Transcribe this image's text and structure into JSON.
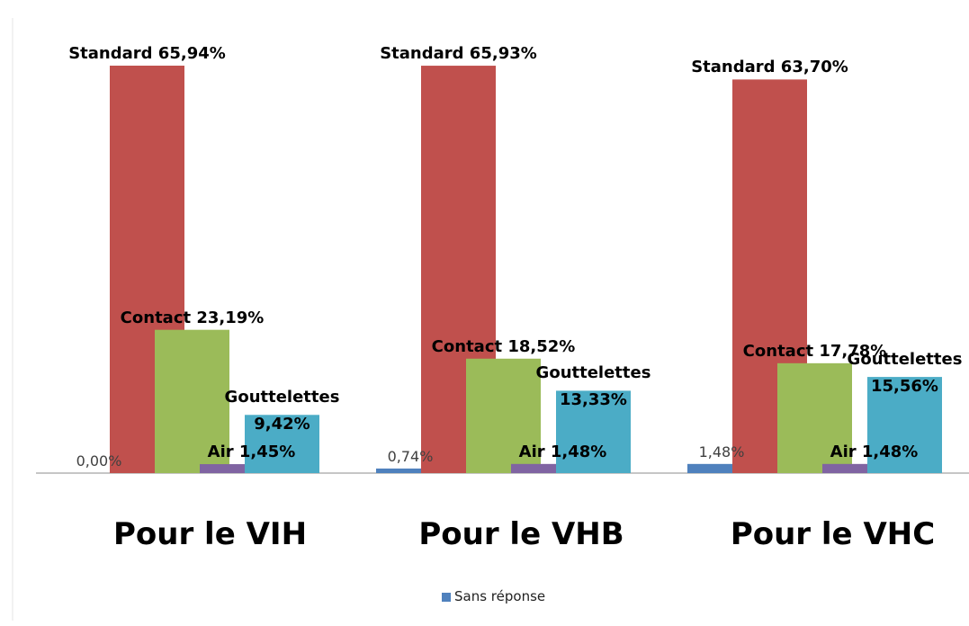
{
  "chart_data": {
    "type": "bar",
    "categories": [
      "Pour le VIH",
      "Pour le VHB",
      "Pour le VHC"
    ],
    "series": [
      {
        "name": "Sans réponse",
        "color": "#4f81bd",
        "values": [
          0,
          0.74,
          1.48
        ],
        "value_labels": [
          "0,00%",
          "0,74%",
          "1,48%"
        ]
      },
      {
        "color": "#c0504d",
        "values": [
          65.94,
          65.93,
          63.7
        ],
        "value_labels": [
          "Standard 65,94%",
          "Standard 65,93%",
          "Standard 63,70%"
        ]
      },
      {
        "color": "#9bbb59",
        "values": [
          23.19,
          18.52,
          17.78
        ],
        "value_labels": [
          "Contact 23,19%",
          "Contact 18,52%",
          "Contact 17,78%"
        ]
      },
      {
        "color": "#8064a2",
        "values": [
          1.45,
          1.48,
          1.48
        ],
        "value_labels": [
          "Air 1,45%",
          "Air 1,48%",
          "Air 1,48%"
        ]
      },
      {
        "color": "#4bacc6",
        "values": [
          9.42,
          13.33,
          15.56
        ],
        "value_labels": [
          "Gouttelettes 9,42%",
          "Gouttelettes 13,33%",
          "Gouttelettes 15,56%"
        ]
      }
    ],
    "legend": "bottom"
  }
}
